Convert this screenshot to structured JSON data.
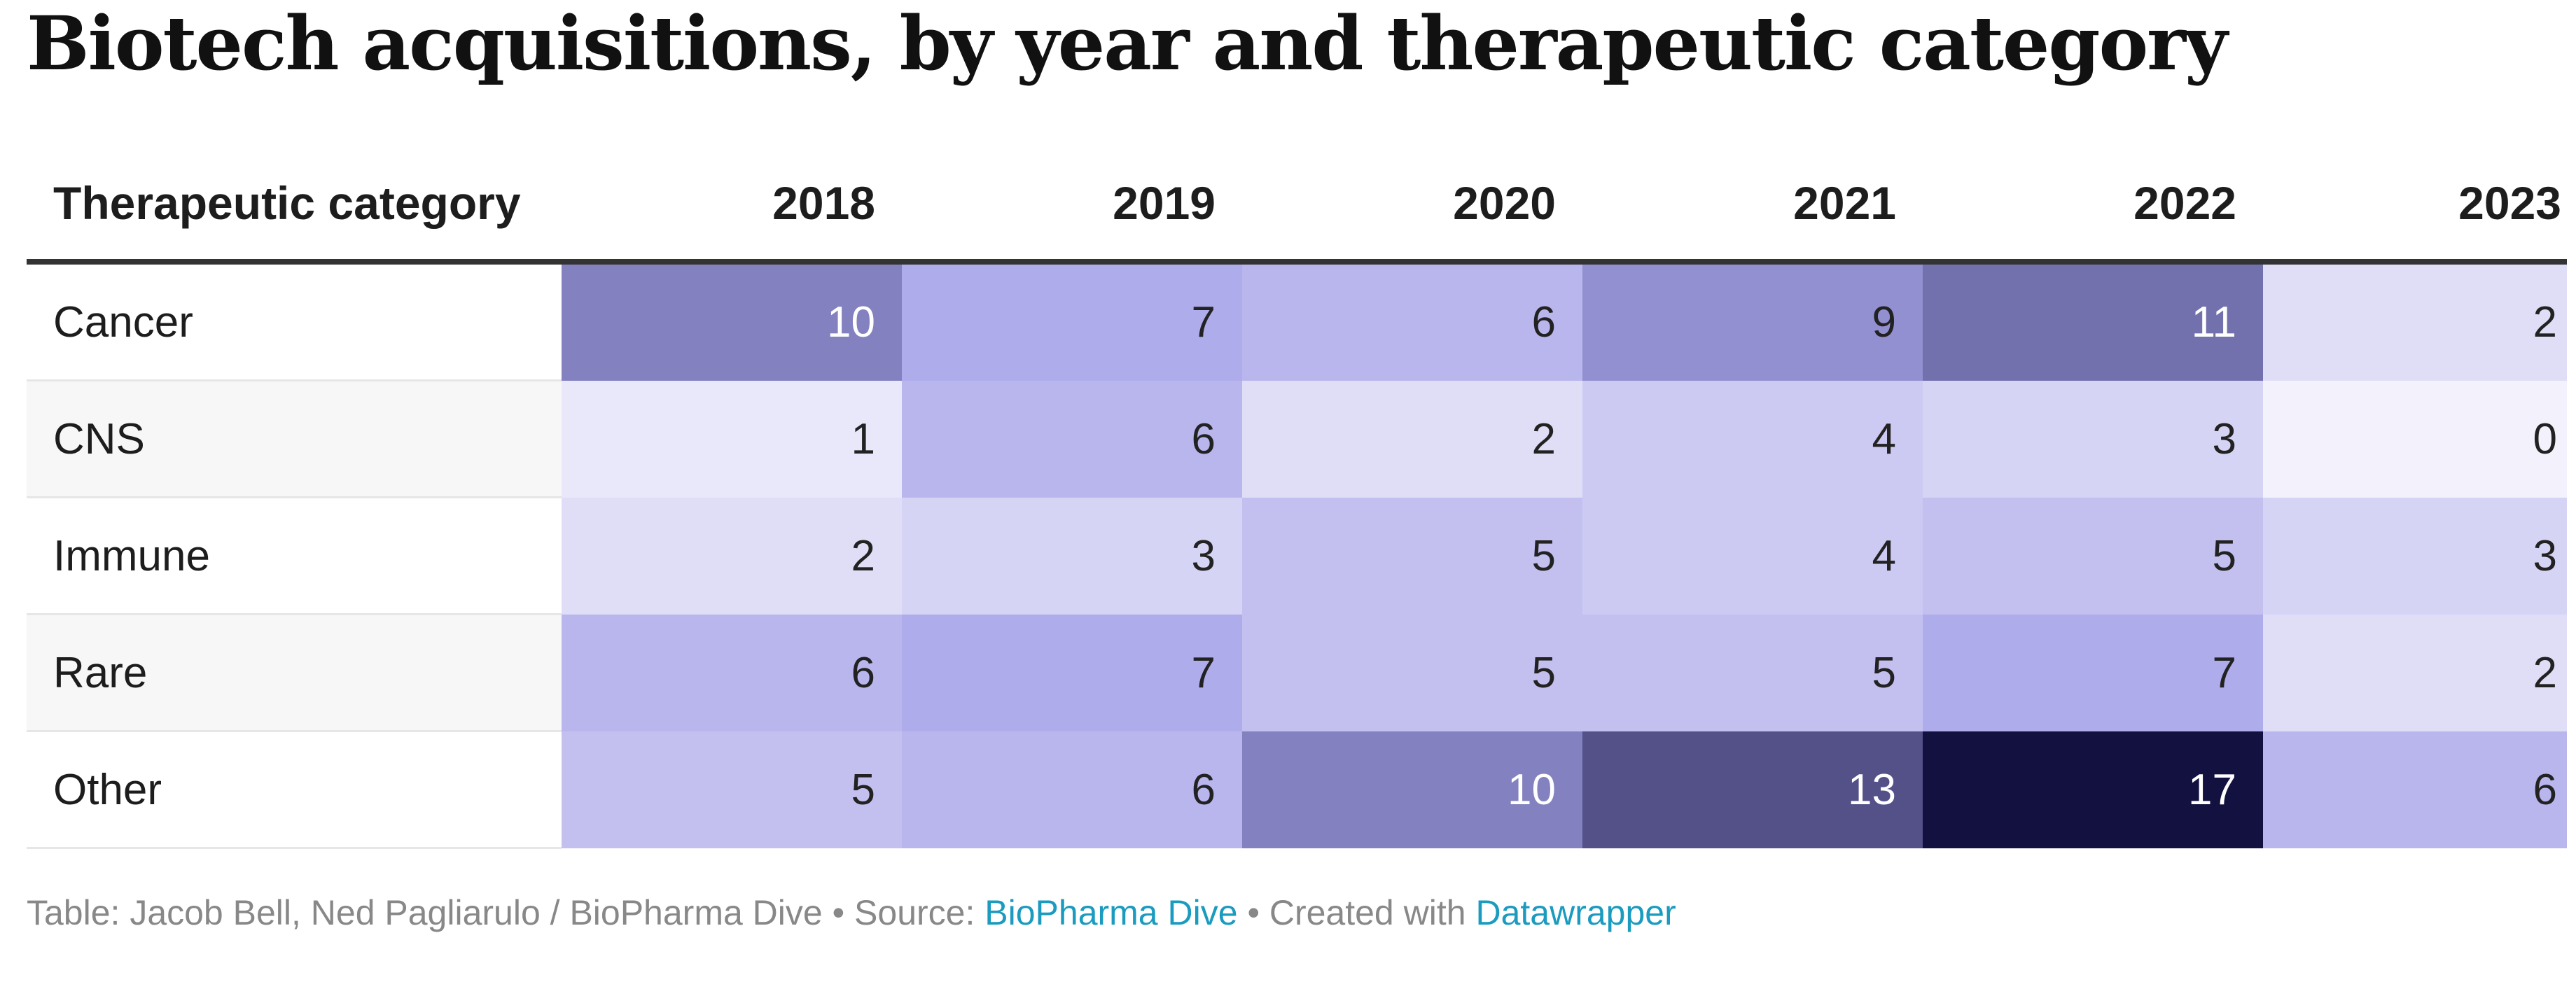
{
  "title": "Biotech acquisitions, by year and therapeutic category",
  "chart_data": {
    "type": "table",
    "title": "Biotech acquisitions, by year and therapeutic category",
    "columns": [
      "Therapeutic category",
      "2018",
      "2019",
      "2020",
      "2021",
      "2022",
      "2023"
    ],
    "years": [
      "2018",
      "2019",
      "2020",
      "2021",
      "2022",
      "2023"
    ],
    "rows": [
      {
        "category": "Cancer",
        "values": [
          10,
          7,
          6,
          9,
          11,
          2
        ]
      },
      {
        "category": "CNS",
        "values": [
          1,
          6,
          2,
          4,
          3,
          0
        ]
      },
      {
        "category": "Immune",
        "values": [
          2,
          3,
          5,
          4,
          5,
          3
        ]
      },
      {
        "category": "Rare",
        "values": [
          6,
          7,
          5,
          5,
          7,
          2
        ]
      },
      {
        "category": "Other",
        "values": [
          5,
          6,
          10,
          13,
          17,
          6
        ]
      }
    ],
    "color_scale": {
      "min": 0,
      "max": 17,
      "low": "#f3f2fc",
      "mid": "#a9a6ea",
      "high": "#12113f"
    }
  },
  "footer": {
    "table_credit": "Table: Jacob Bell, Ned Pagliarulo / BioPharma Dive",
    "bullet": "•",
    "source_prefix": "Source:",
    "source_link": "BioPharma Dive",
    "created_prefix": "Created with",
    "created_link": "Datawrapper"
  }
}
